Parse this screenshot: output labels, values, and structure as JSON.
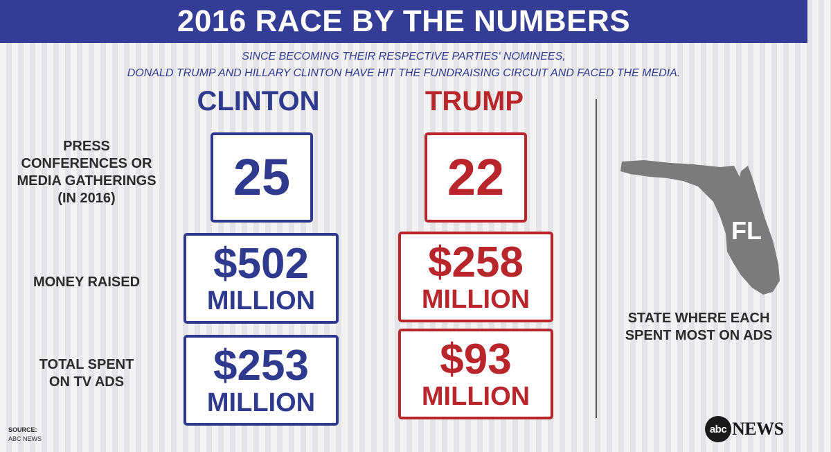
{
  "header": {
    "title": "2016 RACE BY THE NUMBERS"
  },
  "subtitle": {
    "line1": "SINCE BECOMING THEIR RESPECTIVE PARTIES' NOMINEES,",
    "line2": "DONALD TRUMP AND HILLARY CLINTON HAVE HIT THE FUNDRAISING CIRCUIT AND FACED THE MEDIA."
  },
  "columns": {
    "clinton": "CLINTON",
    "trump": "TRUMP"
  },
  "colors": {
    "clinton": "#2f3a8f",
    "trump": "#b8252b",
    "header": "#333d96",
    "map": "#7b7b7b"
  },
  "rows": {
    "press": {
      "label_lines": [
        "PRESS",
        "CONFERENCES OR",
        "MEDIA GATHERINGS",
        "(IN 2016)"
      ],
      "clinton": "25",
      "trump": "22"
    },
    "money": {
      "label_lines": [
        "MONEY RAISED"
      ],
      "clinton_amount": "$502",
      "clinton_unit": "MILLION",
      "trump_amount": "$258",
      "trump_unit": "MILLION"
    },
    "ads": {
      "label_lines": [
        "TOTAL SPENT",
        "ON TV ADS"
      ],
      "clinton_amount": "$253",
      "clinton_unit": "MILLION",
      "trump_amount": "$93",
      "trump_unit": "MILLION"
    }
  },
  "state": {
    "abbr": "FL",
    "label_lines": [
      "STATE WHERE EACH",
      "SPENT MOST ON ADS"
    ],
    "icon": "florida-map-icon"
  },
  "source": {
    "label": "SOURCE:",
    "value": "ABC NEWS"
  },
  "logo": {
    "circle_text": "abc",
    "word": "NEWS"
  }
}
